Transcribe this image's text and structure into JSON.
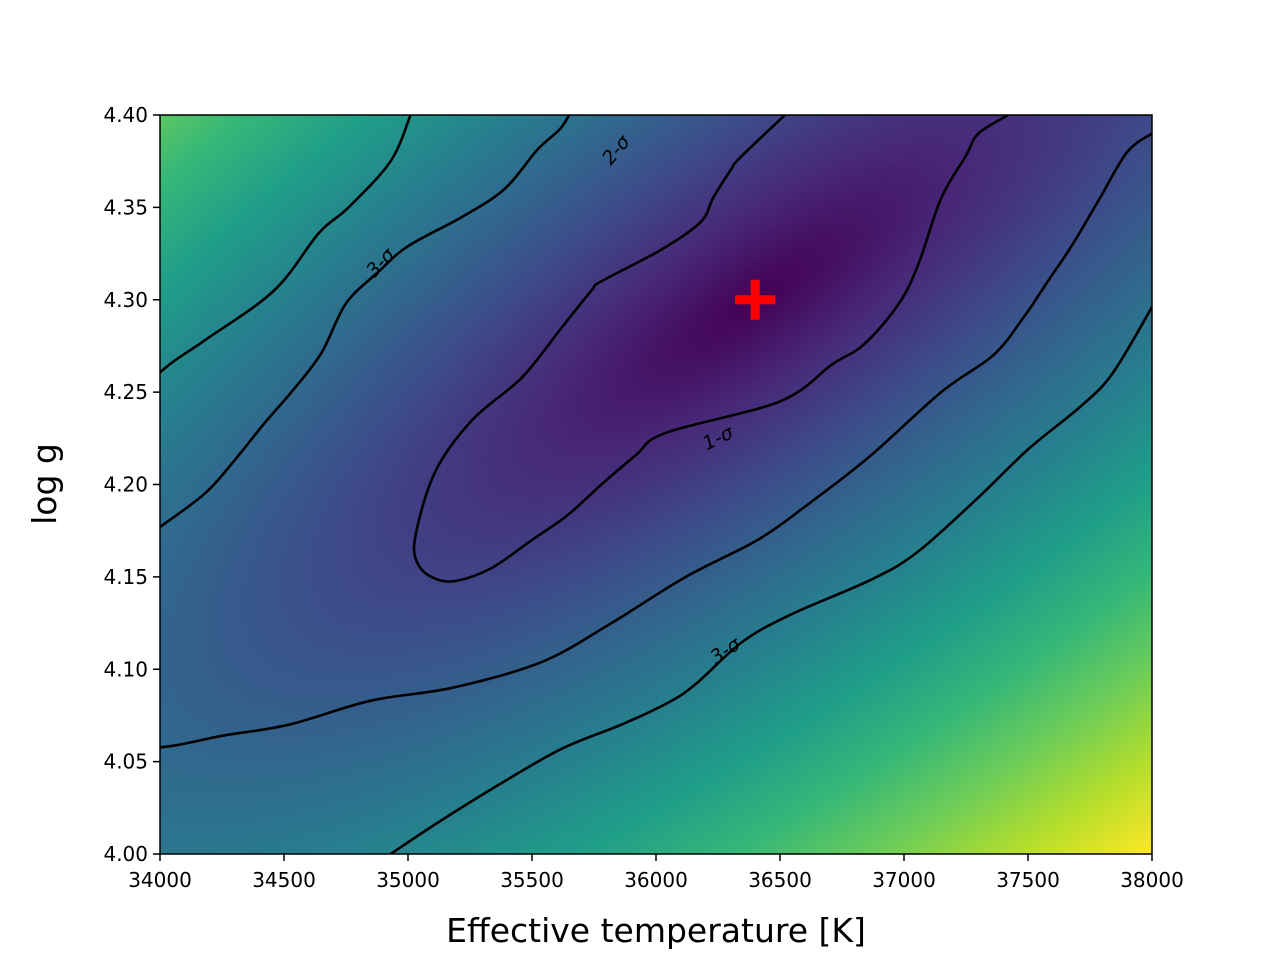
{
  "chart_data": {
    "type": "heatmap",
    "title": "",
    "xlabel": "Effective temperature [K]",
    "ylabel": "log g",
    "xlim": [
      34000,
      38000
    ],
    "ylim": [
      4.0,
      4.4
    ],
    "x_ticks": [
      34000,
      34500,
      35000,
      35500,
      36000,
      36500,
      37000,
      37500,
      38000
    ],
    "x_tick_labels": [
      "34000",
      "34500",
      "35000",
      "35500",
      "36000",
      "36500",
      "37000",
      "37500",
      "38000"
    ],
    "y_ticks": [
      4.0,
      4.05,
      4.1,
      4.15,
      4.2,
      4.25,
      4.3,
      4.35,
      4.4
    ],
    "y_tick_labels": [
      "4.00",
      "4.05",
      "4.10",
      "4.15",
      "4.20",
      "4.25",
      "4.30",
      "4.35",
      "4.40"
    ],
    "colormap": "viridis",
    "best_fit": {
      "x": 36400,
      "y": 4.3,
      "marker": "plus",
      "color": "#ff0000"
    },
    "contours": [
      {
        "label": "1-σ",
        "label_at": {
          "x": 36250,
          "y": 4.225,
          "angle": -26
        },
        "points": [
          [
            36520,
            4.4
          ],
          [
            36340,
            4.377
          ],
          [
            36300,
            4.37
          ],
          [
            36230,
            4.355
          ],
          [
            36180,
            4.342
          ],
          [
            36020,
            4.327
          ],
          [
            35780,
            4.31
          ],
          [
            35740,
            4.305
          ],
          [
            35620,
            4.285
          ],
          [
            35460,
            4.258
          ],
          [
            35260,
            4.235
          ],
          [
            35110,
            4.207
          ],
          [
            35030,
            4.172
          ],
          [
            35040,
            4.157
          ],
          [
            35110,
            4.149
          ],
          [
            35200,
            4.148
          ],
          [
            35340,
            4.155
          ],
          [
            35500,
            4.17
          ],
          [
            35640,
            4.183
          ],
          [
            35780,
            4.2
          ],
          [
            35920,
            4.216
          ],
          [
            36040,
            4.228
          ],
          [
            36500,
            4.245
          ],
          [
            36710,
            4.265
          ],
          [
            36840,
            4.276
          ],
          [
            36980,
            4.298
          ],
          [
            37060,
            4.32
          ],
          [
            37150,
            4.355
          ],
          [
            37250,
            4.378
          ],
          [
            37300,
            4.39
          ],
          [
            37420,
            4.4
          ]
        ]
      },
      {
        "label": "2-σ",
        "label_at": {
          "x": 35840,
          "y": 4.381,
          "angle": -50
        },
        "points": [
          [
            35010,
            4.4
          ],
          [
            34930,
            4.375
          ],
          [
            34760,
            4.35
          ],
          [
            34640,
            4.336
          ],
          [
            34460,
            4.305
          ],
          [
            34180,
            4.278
          ],
          [
            34020,
            4.263
          ],
          [
            33860,
            4.242
          ],
          [
            33740,
            4.222
          ],
          [
            33750,
            4.207
          ],
          [
            33710,
            4.185
          ],
          [
            33600,
            4.157
          ],
          [
            33500,
            4.131
          ],
          [
            33390,
            4.111
          ],
          [
            33340,
            4.086
          ],
          [
            33360,
            4.074
          ],
          [
            33500,
            4.063
          ],
          [
            33760,
            4.057
          ],
          [
            34020,
            4.058
          ],
          [
            34250,
            4.064
          ],
          [
            34520,
            4.07
          ],
          [
            34850,
            4.083
          ],
          [
            35180,
            4.09
          ],
          [
            35540,
            4.104
          ],
          [
            35820,
            4.125
          ],
          [
            36120,
            4.15
          ],
          [
            36410,
            4.17
          ],
          [
            36620,
            4.19
          ],
          [
            36860,
            4.215
          ],
          [
            37150,
            4.25
          ],
          [
            37360,
            4.27
          ],
          [
            37480,
            4.29
          ],
          [
            37580,
            4.31
          ],
          [
            37680,
            4.33
          ],
          [
            37790,
            4.355
          ],
          [
            37900,
            4.38
          ],
          [
            38000,
            4.39
          ]
        ]
      },
      {
        "label": "3-σ",
        "label_at": {
          "x": 34890,
          "y": 4.32,
          "angle": -47
        },
        "points": [
          [
            34000,
            4.177
          ],
          [
            34180,
            4.195
          ],
          [
            34300,
            4.213
          ],
          [
            34420,
            4.233
          ],
          [
            34530,
            4.25
          ],
          [
            34650,
            4.271
          ],
          [
            34750,
            4.298
          ],
          [
            34880,
            4.315
          ],
          [
            35000,
            4.329
          ],
          [
            35220,
            4.345
          ],
          [
            35390,
            4.36
          ],
          [
            35520,
            4.381
          ],
          [
            35610,
            4.392
          ],
          [
            35650,
            4.4
          ]
        ]
      },
      {
        "label": "3-σ",
        "label_at": {
          "x": 36280,
          "y": 4.11,
          "angle": -34
        },
        "points": [
          [
            34930,
            4.0
          ],
          [
            35120,
            4.017
          ],
          [
            35360,
            4.037
          ],
          [
            35620,
            4.057
          ],
          [
            35860,
            4.07
          ],
          [
            36050,
            4.082
          ],
          [
            36160,
            4.092
          ],
          [
            36350,
            4.115
          ],
          [
            36550,
            4.13
          ],
          [
            36860,
            4.148
          ],
          [
            37050,
            4.163
          ],
          [
            37300,
            4.193
          ],
          [
            37500,
            4.219
          ],
          [
            37710,
            4.242
          ],
          [
            37840,
            4.26
          ],
          [
            38000,
            4.296
          ]
        ]
      }
    ]
  }
}
